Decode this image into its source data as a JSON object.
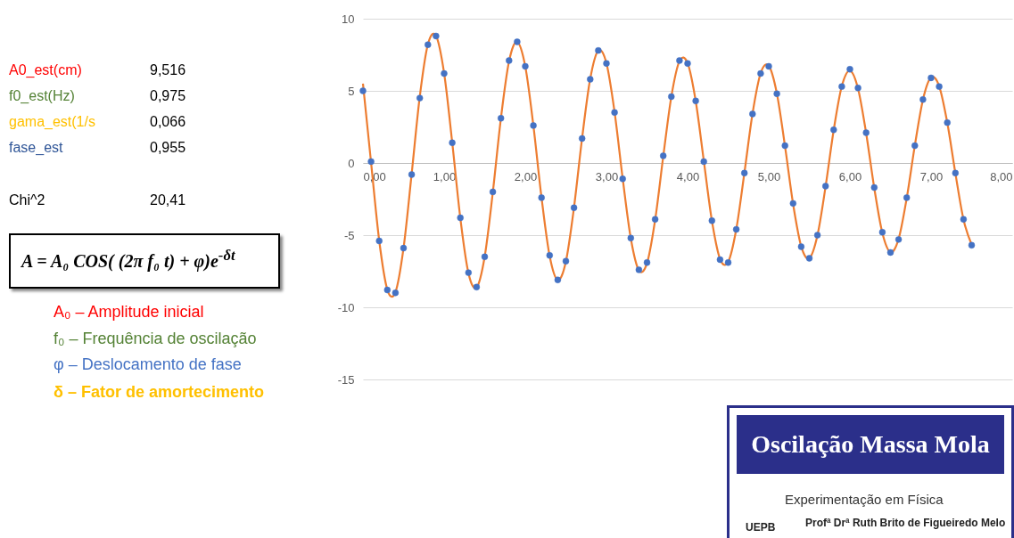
{
  "chart_data": {
    "type": "scatter",
    "title": "Oscilação Massa Mola",
    "x": [
      0,
      0.1,
      0.2,
      0.3,
      0.4,
      0.5,
      0.6,
      0.7,
      0.8,
      0.9,
      1,
      1.1,
      1.2,
      1.3,
      1.4,
      1.5,
      1.6,
      1.7,
      1.8,
      1.9,
      2,
      2.1,
      2.2,
      2.3,
      2.4,
      2.5,
      2.6,
      2.7,
      2.8,
      2.9,
      3,
      3.1,
      3.2,
      3.3,
      3.4,
      3.5,
      3.6,
      3.7,
      3.8,
      3.9,
      4,
      4.1,
      4.2,
      4.3,
      4.4,
      4.5,
      4.6,
      4.7,
      4.8,
      4.9,
      5,
      5.1,
      5.2,
      5.3,
      5.4,
      5.5,
      5.6,
      5.7,
      5.8,
      5.9,
      6,
      6.1,
      6.2,
      6.3,
      6.4,
      6.5,
      6.6,
      6.7,
      6.8,
      6.9,
      7,
      7.1,
      7.2,
      7.3,
      7.4,
      7.5
    ],
    "series": [
      {
        "type": "line",
        "marker": "none",
        "color": "#ed7d31",
        "values": [
          5.5,
          0.03,
          -5.37,
          -8.77,
          -8.95,
          -5.89,
          -0.75,
          4.6,
          8.22,
          8.81,
          6.22,
          1.41,
          -3.84,
          -7.64,
          -8.63,
          -6.48,
          -2.03,
          3.11,
          7.05,
          8.39,
          6.69,
          2.58,
          -2.39,
          -6.44,
          -8.11,
          -6.83,
          -3.09,
          1.72,
          5.83,
          7.79,
          6.91,
          3.54,
          -1.06,
          -5.22,
          -7.44,
          -6.94,
          -3.94,
          0.45,
          4.61,
          7.06,
          6.92,
          4.29,
          0.14,
          -4.01,
          -6.65,
          -6.85,
          -4.58,
          -0.68,
          3.42,
          6.22,
          6.74,
          4.82,
          1.18,
          -2.84,
          -5.78,
          -6.59,
          -5.01,
          -1.64,
          2.27,
          5.32,
          6.4,
          5.16,
          2.07,
          -1.73,
          -4.85,
          -6.18,
          -5.26,
          -2.44,
          1.21,
          4.39,
          5.93,
          5.32,
          2.79,
          -0.72,
          -3.92,
          -5.66
        ]
      },
      {
        "marker": "circle",
        "color": "#4472c4",
        "values": [
          5.0,
          0.1,
          -5.4,
          -8.8,
          -9.0,
          -5.9,
          -0.8,
          4.5,
          8.2,
          8.8,
          6.2,
          1.4,
          -3.8,
          -7.6,
          -8.6,
          -6.5,
          -2.0,
          3.1,
          7.1,
          8.4,
          6.7,
          2.6,
          -2.4,
          -6.4,
          -8.1,
          -6.8,
          -3.1,
          1.7,
          5.8,
          7.8,
          6.9,
          3.5,
          -1.1,
          -5.2,
          -7.4,
          -6.9,
          -3.9,
          0.5,
          4.6,
          7.1,
          6.9,
          4.3,
          0.1,
          -4.0,
          -6.7,
          -6.9,
          -4.6,
          -0.7,
          3.4,
          6.2,
          6.7,
          4.8,
          1.2,
          -2.8,
          -5.8,
          -6.6,
          -5.0,
          -1.6,
          2.3,
          5.3,
          6.5,
          5.2,
          2.1,
          -1.7,
          -4.8,
          -6.2,
          -5.3,
          -2.4,
          1.2,
          4.4,
          5.9,
          5.3,
          2.8,
          -0.7,
          -3.9,
          -5.7
        ]
      }
    ],
    "xlim": [
      0,
      8
    ],
    "xticks": [
      {
        "value": 0,
        "label": "0,00"
      },
      {
        "value": 1,
        "label": "1,00"
      },
      {
        "value": 2,
        "label": "2,00"
      },
      {
        "value": 3,
        "label": "3,00"
      },
      {
        "value": 4,
        "label": "4,00"
      },
      {
        "value": 5,
        "label": "5,00"
      },
      {
        "value": 6,
        "label": "6,00"
      },
      {
        "value": 7,
        "label": "7,00"
      },
      {
        "value": 8,
        "label": "8,00"
      }
    ],
    "ylim": [
      -15,
      10
    ],
    "yticks": [
      -15,
      -10,
      -5,
      0,
      5,
      10
    ],
    "grid": "y",
    "annotations": [
      "A0_est(cm)",
      "9,516",
      "f0_est(Hz)",
      "0,975",
      "gama_est(1/s",
      "0,066",
      "fase_est",
      "0,955",
      "Chi^2",
      "20,41",
      "A = A₀ COS( (2π f₀ t) + φ)e$^{-δt}$",
      "A₀ – Amplitude inicial",
      "f₀ – Frequência de oscilação",
      "φ – Deslocamento de fase",
      "δ – Fator de amortecimento",
      "Experimentação em Física",
      "Profª Drª Ruth Brito de Figueiredo Melo",
      "UEPB"
    ]
  }
}
